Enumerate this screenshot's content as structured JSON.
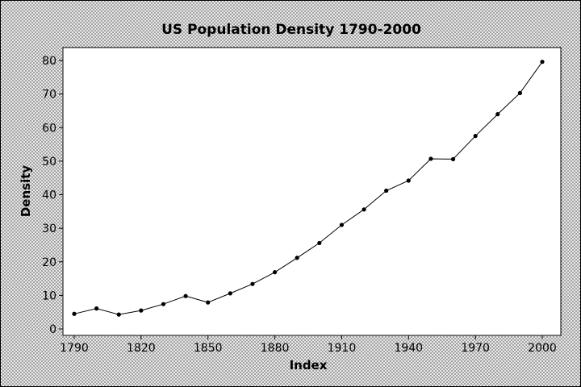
{
  "chart_data": {
    "type": "line",
    "title": "US Population Density 1790-2000",
    "xlabel": "Index",
    "ylabel": "Density",
    "xlim": [
      1790,
      2000
    ],
    "ylim": [
      0,
      80
    ],
    "x_ticks": [
      "1790",
      "1820",
      "1850",
      "1880",
      "1910",
      "1940",
      "1970",
      "2000"
    ],
    "y_ticks": [
      "0",
      "10",
      "20",
      "30",
      "40",
      "50",
      "60",
      "70",
      "80"
    ],
    "grid": false,
    "legend": "none",
    "line_color": "#000000",
    "marker_color": "#000000",
    "series": [
      {
        "x": [
          1790,
          1800,
          1810,
          1820,
          1830,
          1840,
          1850,
          1860,
          1870,
          1880,
          1890,
          1900,
          1910,
          1920,
          1930,
          1940,
          1950,
          1960,
          1970,
          1980,
          1990,
          2000
        ],
        "values": [
          4.5,
          6.1,
          4.3,
          5.5,
          7.4,
          9.8,
          7.9,
          10.6,
          13.4,
          16.9,
          21.2,
          25.6,
          31.0,
          35.6,
          41.2,
          44.2,
          50.7,
          50.6,
          57.5,
          64.0,
          70.3,
          79.6
        ]
      }
    ]
  }
}
